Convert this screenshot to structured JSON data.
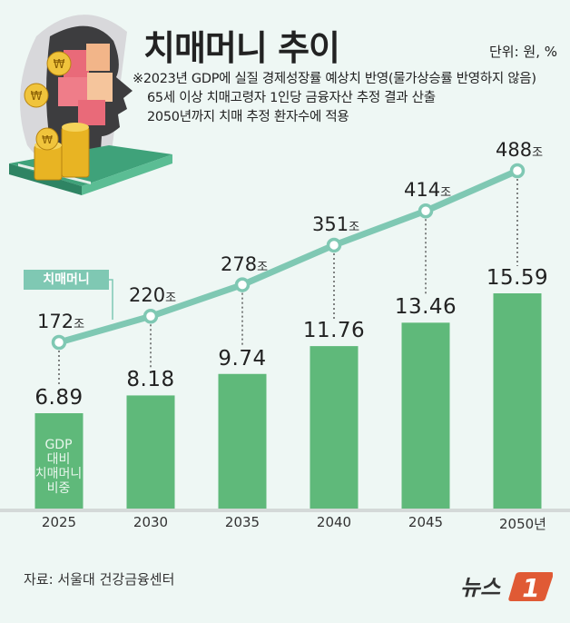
{
  "header": {
    "title": "치매머니 추이",
    "unit": "단위: 원, %",
    "notes": [
      "※2023년 GDP에 실질 경제성장률 예상치 반영(물가상승률 반영하지 않음)",
      "65세 이상 치매고령자 1인당 금융자산 추정 결과 산출",
      "2050년까지 치매 추정 환자수에 적용"
    ]
  },
  "legend": {
    "line_label": "치매머니",
    "bar_label": "GDP\n대비\n치매머니\n비중",
    "bar_label_lines": [
      "GDP",
      "대비",
      "치매머니",
      "비중"
    ]
  },
  "chart_data": {
    "type": "bar+line",
    "title": "치매머니 추이",
    "unit": "단위: 원, %",
    "categories": [
      "2025",
      "2030",
      "2035",
      "2040",
      "2045",
      "2050년"
    ],
    "series": [
      {
        "name": "치매머니",
        "type": "line",
        "values": [
          172,
          220,
          278,
          351,
          414,
          488
        ],
        "suffix": "조",
        "labels": [
          "172",
          "220",
          "278",
          "351",
          "414",
          "488"
        ],
        "color": "#7fc8b3"
      },
      {
        "name": "GDP 대비 치매머니 비중",
        "type": "bar",
        "values": [
          6.89,
          8.18,
          9.74,
          11.76,
          13.46,
          15.59
        ],
        "labels": [
          "6.89",
          "8.18",
          "9.74",
          "11.76",
          "13.46",
          "15.59"
        ],
        "color": "#5fb97a"
      }
    ],
    "xlabel": "",
    "ylabel": "",
    "grid": false,
    "legend_position": "inline"
  },
  "money_suffix": "조",
  "footer": {
    "source": "자료: 서울대 건강금융센터",
    "logo_text": "뉴스",
    "logo_number": "1"
  },
  "colors": {
    "background": "#eef7f4",
    "bar": "#5fb97a",
    "line": "#7fc8b3",
    "logo_accent": "#e05a35"
  }
}
